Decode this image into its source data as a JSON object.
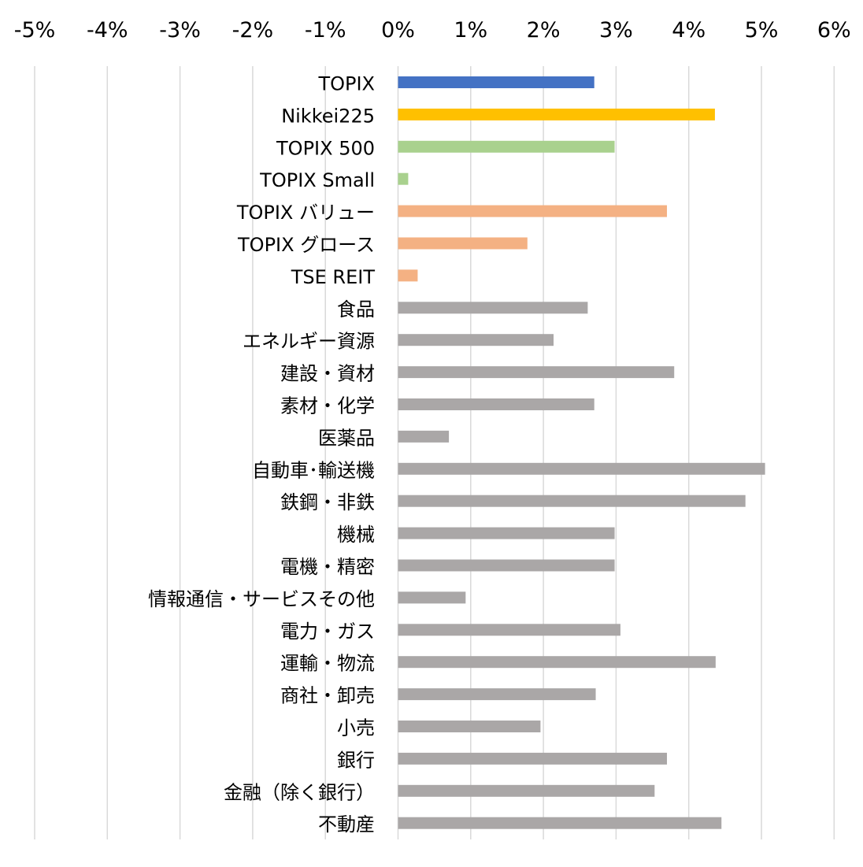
{
  "chart_data": {
    "type": "bar",
    "orientation": "horizontal",
    "categories": [
      "TOPIX",
      "Nikkei225",
      "TOPIX 500",
      "TOPIX Small",
      "TOPIX バリュー",
      "TOPIX グロース",
      "TSE REIT",
      "食品",
      "エネルギー資源",
      "建設・資材",
      "素材・化学",
      "医薬品",
      "自動車･輸送機",
      "鉄鋼・非鉄",
      "機械",
      "電機・精密",
      "情報通信・サービスその他",
      "電力・ガス",
      "運輸・物流",
      "商社・卸売",
      "小売",
      "銀行",
      "金融（除く銀行）",
      "不動産"
    ],
    "values": [
      2.7,
      4.36,
      2.98,
      0.14,
      3.7,
      1.78,
      0.27,
      2.61,
      2.14,
      3.8,
      2.7,
      0.7,
      5.05,
      4.78,
      2.98,
      2.98,
      0.93,
      3.06,
      4.37,
      2.72,
      1.96,
      3.7,
      3.53,
      4.45
    ],
    "bar_colors": [
      "#4472c4",
      "#ffc000",
      "#a9d18e",
      "#a9d18e",
      "#f4b183",
      "#f4b183",
      "#f4b183",
      "#aaa7a7",
      "#aaa7a7",
      "#aaa7a7",
      "#aaa7a7",
      "#aaa7a7",
      "#aaa7a7",
      "#aaa7a7",
      "#aaa7a7",
      "#aaa7a7",
      "#aaa7a7",
      "#aaa7a7",
      "#aaa7a7",
      "#aaa7a7",
      "#aaa7a7",
      "#aaa7a7",
      "#aaa7a7",
      "#aaa7a7"
    ],
    "xlim": [
      -5,
      6
    ],
    "xticks": [
      -5,
      -4,
      -3,
      -2,
      -1,
      0,
      1,
      2,
      3,
      4,
      5,
      6
    ],
    "xtick_labels": [
      "-5%",
      "-4%",
      "-3%",
      "-2%",
      "-1%",
      "0%",
      "1%",
      "2%",
      "3%",
      "4%",
      "5%",
      "6%"
    ],
    "x_axis_position": "top",
    "grid": true,
    "gridline_color": "#d9d9d9",
    "title": "",
    "xlabel": "",
    "ylabel": "",
    "legend": "none"
  }
}
